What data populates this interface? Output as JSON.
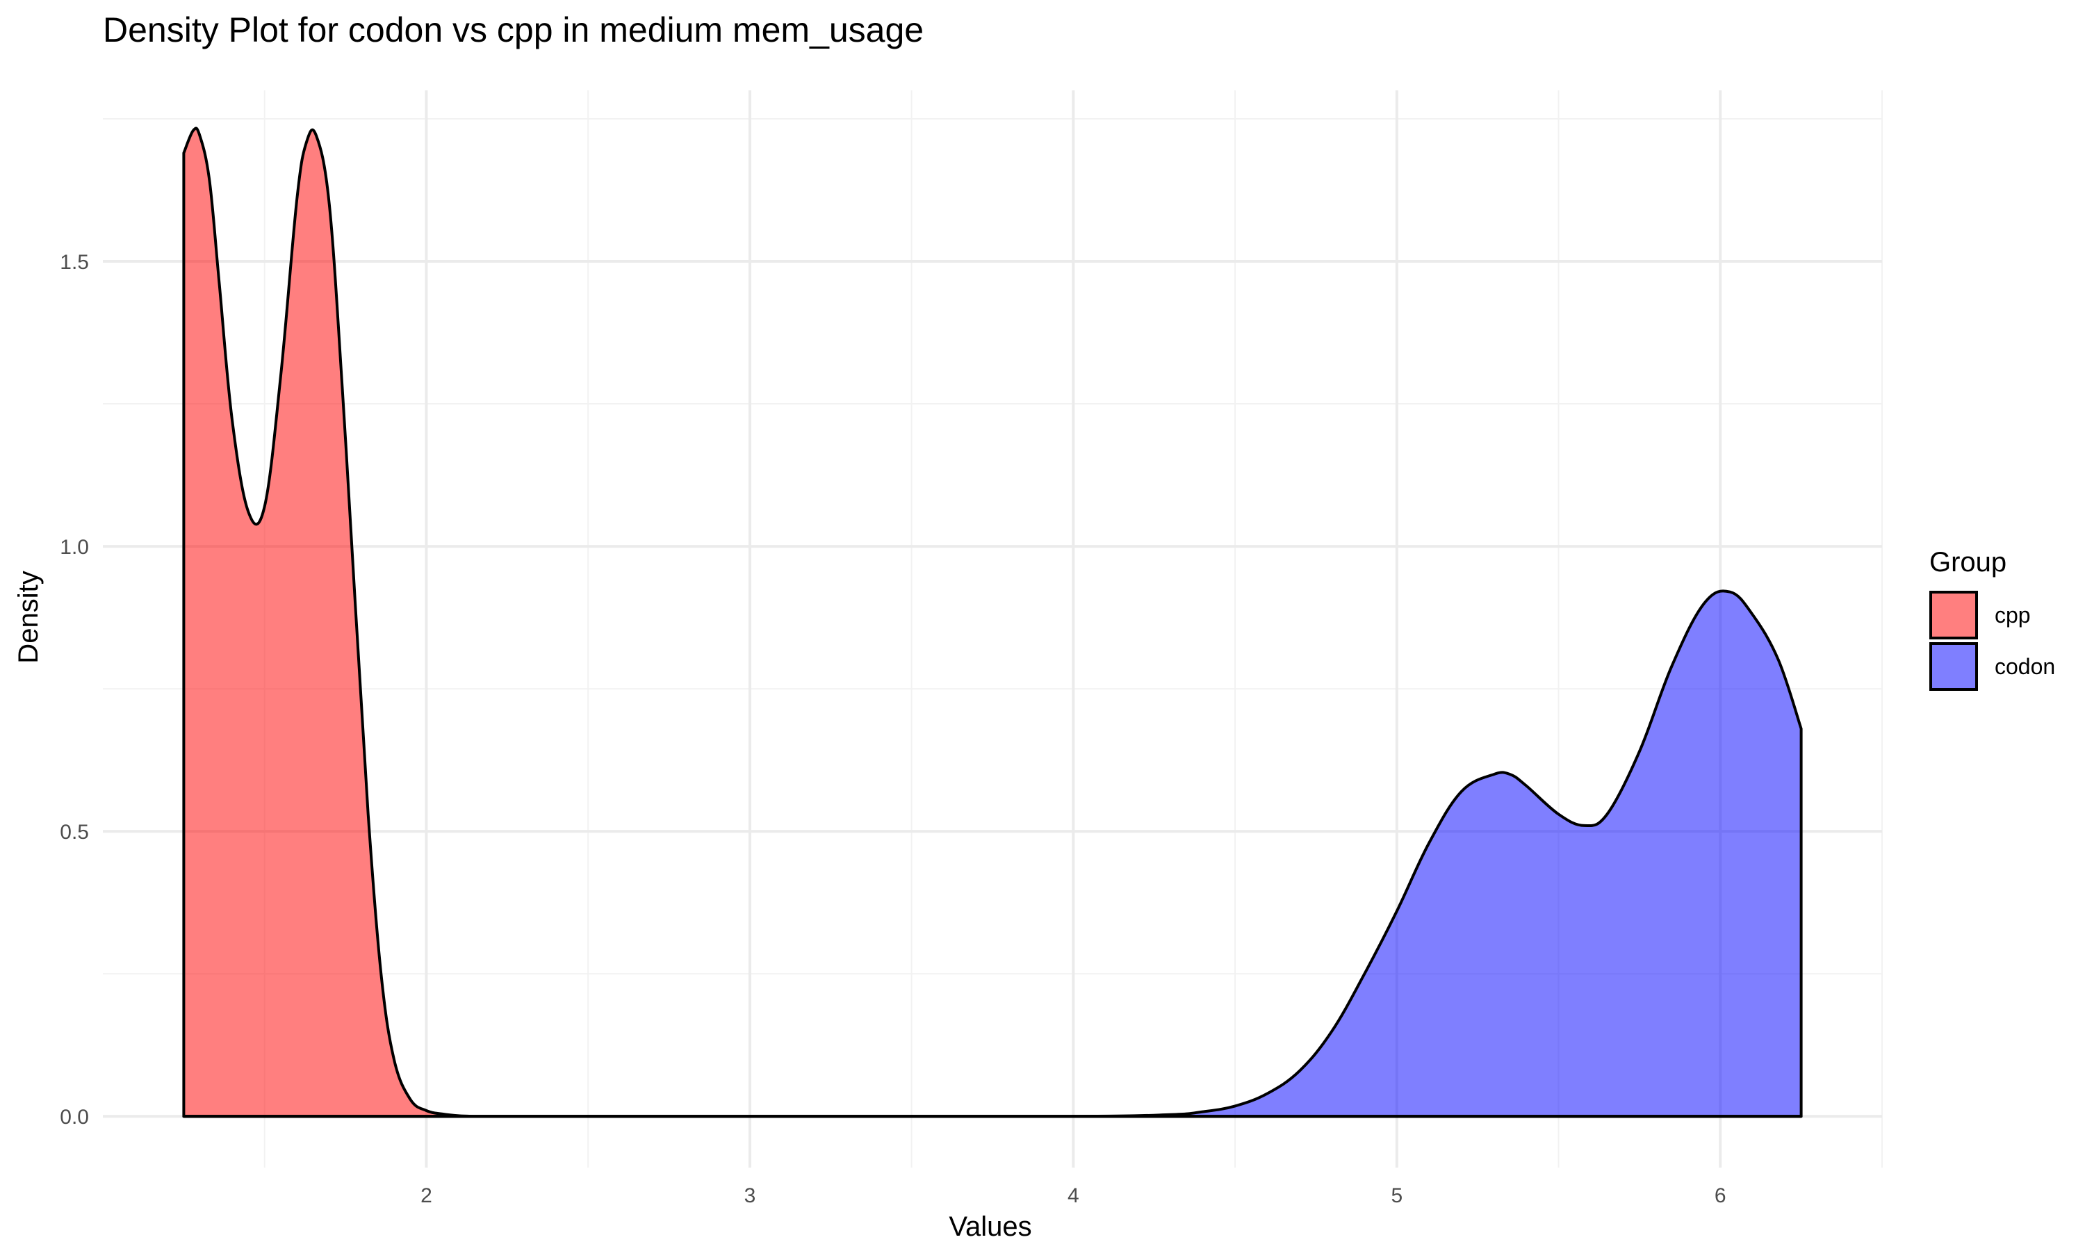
{
  "chart_data": {
    "type": "area",
    "subtype": "density",
    "title": "Density Plot for codon vs cpp in medium mem_usage",
    "xlabel": "Values",
    "ylabel": "Density",
    "xlim": [
      1.0,
      6.5
    ],
    "ylim": [
      -0.09,
      1.8
    ],
    "x_major_ticks": [
      2,
      3,
      4,
      5,
      6
    ],
    "x_minor_ticks": [
      1.5,
      2.5,
      3.5,
      4.5,
      5.5,
      6.5
    ],
    "y_major_ticks": [
      0.0,
      0.5,
      1.0,
      1.5
    ],
    "y_minor_ticks": [
      0.25,
      0.75,
      1.25,
      1.75
    ],
    "y_tick_labels": [
      "0.0",
      "0.5",
      "1.0",
      "1.5"
    ],
    "x_tick_labels": [
      "2",
      "3",
      "4",
      "5",
      "6"
    ],
    "grid": true,
    "legend": {
      "title": "Group",
      "placement": "right",
      "entries": [
        "cpp",
        "codon"
      ]
    },
    "series": [
      {
        "name": "cpp",
        "color": "#ff0000",
        "x": [
          1.25,
          1.28,
          1.3,
          1.33,
          1.36,
          1.4,
          1.45,
          1.5,
          1.55,
          1.6,
          1.63,
          1.66,
          1.7,
          1.74,
          1.78,
          1.82,
          1.86,
          1.9,
          1.95,
          2.0,
          2.05,
          2.1,
          2.15,
          2.2,
          2.5,
          3.0,
          3.5,
          4.0,
          4.4,
          4.6,
          4.8,
          5.0,
          5.5,
          6.0,
          6.25
        ],
        "y": [
          1.69,
          1.73,
          1.72,
          1.64,
          1.46,
          1.22,
          1.06,
          1.07,
          1.3,
          1.61,
          1.71,
          1.72,
          1.6,
          1.28,
          0.9,
          0.53,
          0.25,
          0.1,
          0.03,
          0.01,
          0.004,
          0.001,
          0.0,
          0.0,
          0.0,
          0.0,
          0.0,
          0.0,
          0.0,
          0.0,
          0.0,
          0.0,
          0.0,
          0.0,
          0.0
        ]
      },
      {
        "name": "codon",
        "color": "#0000ff",
        "x": [
          1.25,
          2.0,
          3.0,
          4.0,
          4.3,
          4.4,
          4.5,
          4.6,
          4.7,
          4.8,
          4.9,
          5.0,
          5.1,
          5.2,
          5.3,
          5.35,
          5.4,
          5.5,
          5.58,
          5.65,
          5.75,
          5.85,
          5.95,
          6.03,
          6.1,
          6.18,
          6.25
        ],
        "y": [
          0.0,
          0.0,
          0.0,
          0.0,
          0.003,
          0.008,
          0.018,
          0.04,
          0.08,
          0.15,
          0.25,
          0.36,
          0.48,
          0.57,
          0.6,
          0.6,
          0.58,
          0.53,
          0.51,
          0.53,
          0.64,
          0.79,
          0.9,
          0.92,
          0.88,
          0.8,
          0.68
        ]
      }
    ]
  }
}
